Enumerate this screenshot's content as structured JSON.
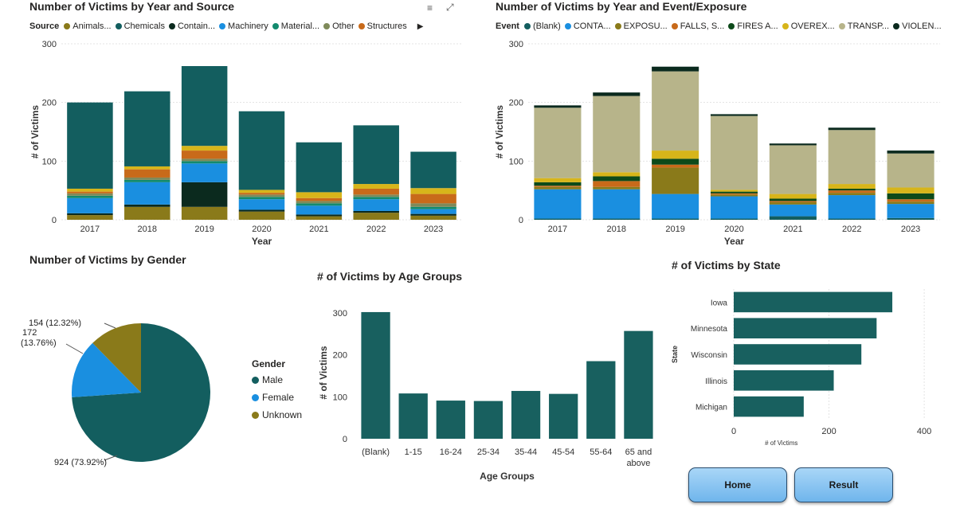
{
  "colors": {
    "teal": "#135e5f",
    "blue": "#1a8fe0",
    "olive": "#8a7a1a",
    "dark": "#0b2a1e",
    "sage": "#7f8a5a",
    "orange": "#c86a1a",
    "yellow": "#d7b51a",
    "khaki": "#b7b48a",
    "green": "#0d4a1a",
    "barTeal": "#18605f"
  },
  "header": {
    "filter_icon": "filter-icon",
    "focus_icon": "focus-mode-icon"
  },
  "chart1": {
    "title": "Number of Victims by Year and Source",
    "legend_title": "Source",
    "legend": [
      {
        "name": "Animals...",
        "color": "#8a7a1a"
      },
      {
        "name": "Chemicals",
        "color": "#135e5f"
      },
      {
        "name": "Contain...",
        "color": "#0b2a1e"
      },
      {
        "name": "Machinery",
        "color": "#1a8fe0"
      },
      {
        "name": "Material...",
        "color": "#138a6e"
      },
      {
        "name": "Other",
        "color": "#7f8a5a"
      },
      {
        "name": "Structures",
        "color": "#c86a1a"
      }
    ],
    "legend_more": "▶"
  },
  "chart2": {
    "title": "Number of Victims by Year and Event/Exposure",
    "legend_title": "Event",
    "legend": [
      {
        "name": "(Blank)",
        "color": "#135e5f"
      },
      {
        "name": "CONTA...",
        "color": "#1a8fe0"
      },
      {
        "name": "EXPOSU...",
        "color": "#8a7a1a"
      },
      {
        "name": "FALLS, S...",
        "color": "#c86a1a"
      },
      {
        "name": "FIRES A...",
        "color": "#0d4a1a"
      },
      {
        "name": "OVEREX...",
        "color": "#d7b51a"
      },
      {
        "name": "TRANSP...",
        "color": "#b7b48a"
      },
      {
        "name": "VIOLEN...",
        "color": "#0b2a1e"
      }
    ]
  },
  "chart3": {
    "title": "Number of Victims by Gender",
    "legend_title": "Gender"
  },
  "chart4": {
    "title": "# of Victims by Age Groups"
  },
  "chart5": {
    "title": "# of Victims by State"
  },
  "buttons": {
    "home": "Home",
    "result": "Result"
  },
  "chart_data": [
    {
      "type": "bar",
      "stacked": true,
      "categories": [
        "2017",
        "2018",
        "2019",
        "2020",
        "2021",
        "2022",
        "2023"
      ],
      "xlabel": "Year",
      "ylabel": "# of Victims",
      "ylim": [
        0,
        300
      ],
      "yticks": [
        0,
        100,
        200,
        300
      ],
      "series": [
        {
          "name": "Animals...",
          "color": "#8a7a1a",
          "values": [
            8,
            22,
            22,
            14,
            6,
            12,
            7
          ]
        },
        {
          "name": "Contain...",
          "color": "#0b2a1e",
          "values": [
            3,
            4,
            42,
            3,
            3,
            3,
            3
          ]
        },
        {
          "name": "Machinery",
          "color": "#1a8fe0",
          "values": [
            26,
            38,
            32,
            18,
            15,
            20,
            8
          ]
        },
        {
          "name": "Material...",
          "color": "#138a6e",
          "values": [
            4,
            4,
            4,
            4,
            4,
            4,
            4
          ]
        },
        {
          "name": "Other",
          "color": "#7f8a5a",
          "values": [
            4,
            4,
            4,
            4,
            4,
            4,
            6
          ]
        },
        {
          "name": "Structures",
          "color": "#c86a1a",
          "values": [
            3,
            14,
            14,
            3,
            5,
            10,
            16
          ]
        },
        {
          "name": "Chemicals",
          "color": "#135e5f",
          "values": [
            147,
            128,
            136,
            134,
            85,
            100,
            62
          ]
        }
      ],
      "extra_band": {
        "color": "#d7b51a",
        "values": [
          5,
          5,
          8,
          5,
          10,
          8,
          10
        ]
      }
    },
    {
      "type": "bar",
      "stacked": true,
      "categories": [
        "2017",
        "2018",
        "2019",
        "2020",
        "2021",
        "2022",
        "2023"
      ],
      "xlabel": "Year",
      "ylabel": "# of Victims",
      "ylim": [
        0,
        300
      ],
      "yticks": [
        0,
        100,
        200,
        300
      ],
      "series": [
        {
          "name": "(Blank)",
          "color": "#135e5f",
          "values": [
            2,
            2,
            2,
            2,
            6,
            2,
            3
          ]
        },
        {
          "name": "CONTA...",
          "color": "#1a8fe0",
          "values": [
            50,
            50,
            42,
            38,
            20,
            40,
            24
          ]
        },
        {
          "name": "EXPOSU...",
          "color": "#8a7a1a",
          "values": [
            4,
            4,
            45,
            3,
            4,
            4,
            4
          ]
        },
        {
          "name": "FALLS, S...",
          "color": "#c86a1a",
          "values": [
            2,
            10,
            5,
            2,
            2,
            4,
            4
          ]
        },
        {
          "name": "FIRES A...",
          "color": "#0d4a1a",
          "values": [
            6,
            8,
            10,
            3,
            4,
            3,
            10
          ]
        },
        {
          "name": "OVEREX...",
          "color": "#d7b51a",
          "values": [
            7,
            7,
            14,
            3,
            8,
            8,
            10
          ]
        },
        {
          "name": "TRANSP...",
          "color": "#b7b48a",
          "values": [
            120,
            130,
            135,
            126,
            83,
            92,
            58
          ]
        },
        {
          "name": "VIOLEN...",
          "color": "#0b2a1e",
          "values": [
            4,
            6,
            8,
            3,
            3,
            4,
            5
          ]
        }
      ]
    },
    {
      "type": "pie",
      "slices": [
        {
          "name": "Male",
          "value": 924,
          "label": "924 (73.92%)",
          "color": "#135e5f"
        },
        {
          "name": "Female",
          "value": 172,
          "label": "172 (13.76%)",
          "color": "#1a8fe0"
        },
        {
          "name": "Unknown",
          "value": 154,
          "label": "154 (12.32%)",
          "color": "#8a7a1a"
        }
      ]
    },
    {
      "type": "bar",
      "categories": [
        "(Blank)",
        "1-15",
        "16-24",
        "25-34",
        "35-44",
        "45-54",
        "55-64",
        "65 and above"
      ],
      "values": [
        302,
        108,
        91,
        90,
        114,
        107,
        185,
        257
      ],
      "xlabel": "Age Groups",
      "ylabel": "# of Victims",
      "ylim": [
        0,
        300
      ],
      "yticks": [
        0,
        100,
        200,
        300
      ]
    },
    {
      "type": "bar",
      "orientation": "horizontal",
      "categories": [
        "Iowa",
        "Minnesota",
        "Wisconsin",
        "Illinois",
        "Michigan"
      ],
      "values": [
        333,
        300,
        268,
        210,
        147
      ],
      "xlabel": "# of Victims",
      "ylabel": "State",
      "xlim": [
        0,
        450
      ],
      "xticks": [
        0,
        200,
        400
      ]
    }
  ]
}
